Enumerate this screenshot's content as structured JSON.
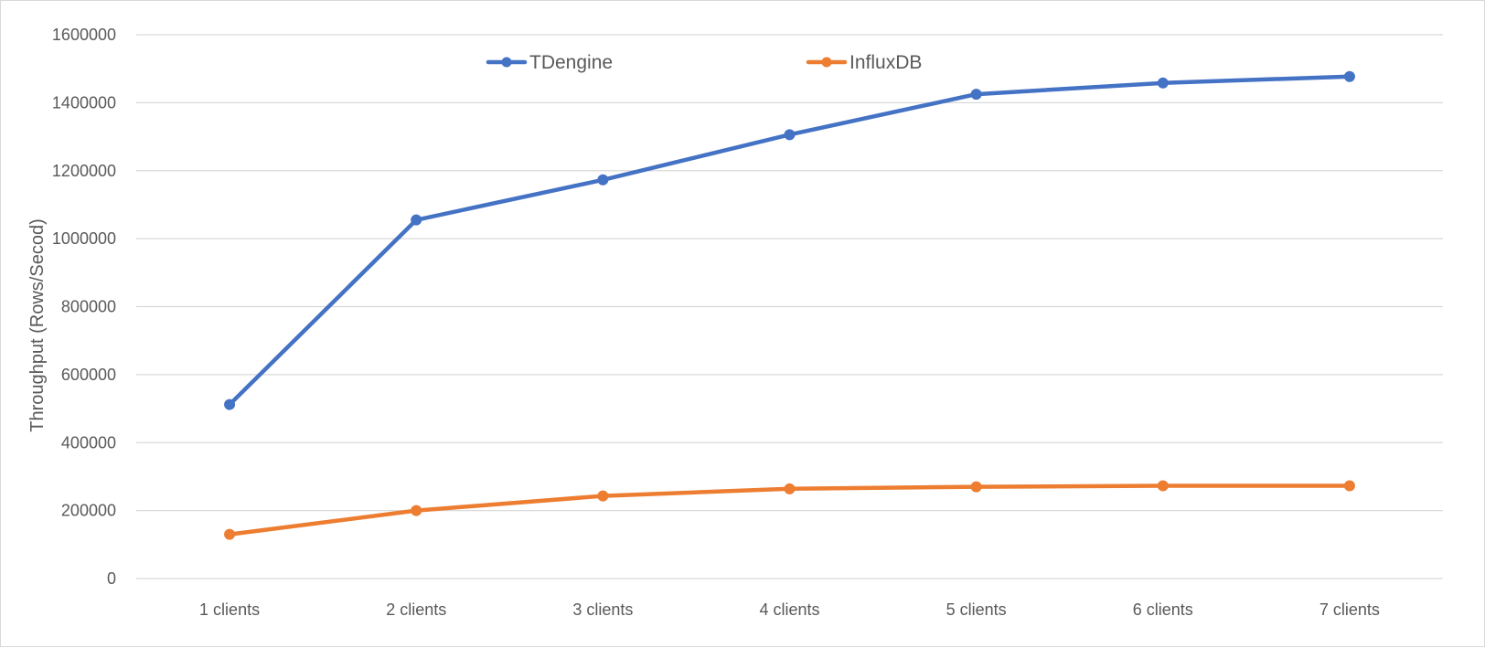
{
  "chart_data": {
    "type": "line",
    "title": "",
    "xlabel": "",
    "ylabel": "Throughput (Rows/Secod)",
    "categories": [
      "1 clients",
      "2 clients",
      "3 clients",
      "4 clients",
      "5 clients",
      "6 clients",
      "7 clients"
    ],
    "ylim": [
      0,
      1600000
    ],
    "yticks": [
      "0",
      "200000",
      "400000",
      "600000",
      "800000",
      "1000000",
      "1200000",
      "1400000",
      "1600000"
    ],
    "grid": true,
    "legend_position": "top-center",
    "series": [
      {
        "name": "TDengine",
        "color": "#4472c4",
        "values": [
          512000,
          1055000,
          1173000,
          1306000,
          1425000,
          1458000,
          1477000
        ]
      },
      {
        "name": "InfluxDB",
        "color": "#ed7d31",
        "values": [
          130000,
          200000,
          243000,
          264000,
          270000,
          273000,
          273000
        ]
      }
    ]
  }
}
